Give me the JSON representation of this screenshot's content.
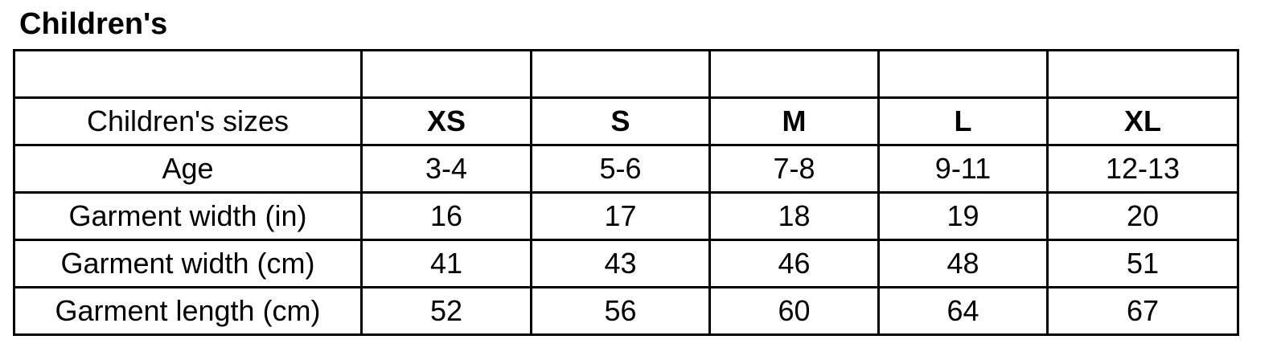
{
  "title": "Children's",
  "table": {
    "header_row": [
      "",
      "",
      "",
      "",
      "",
      ""
    ],
    "rows": [
      {
        "label": "Children's sizes",
        "values": [
          "XS",
          "S",
          "M",
          "L",
          "XL"
        ]
      },
      {
        "label": "Age",
        "values": [
          "3-4",
          "5-6",
          "7-8",
          "9-11",
          "12-13"
        ]
      },
      {
        "label": "Garment width (in)",
        "values": [
          "16",
          "17",
          "18",
          "19",
          "20"
        ]
      },
      {
        "label": "Garment width (cm)",
        "values": [
          "41",
          "43",
          "46",
          "48",
          "51"
        ]
      },
      {
        "label": "Garment length (cm)",
        "values": [
          "52",
          "56",
          "60",
          "64",
          "67"
        ]
      }
    ]
  }
}
